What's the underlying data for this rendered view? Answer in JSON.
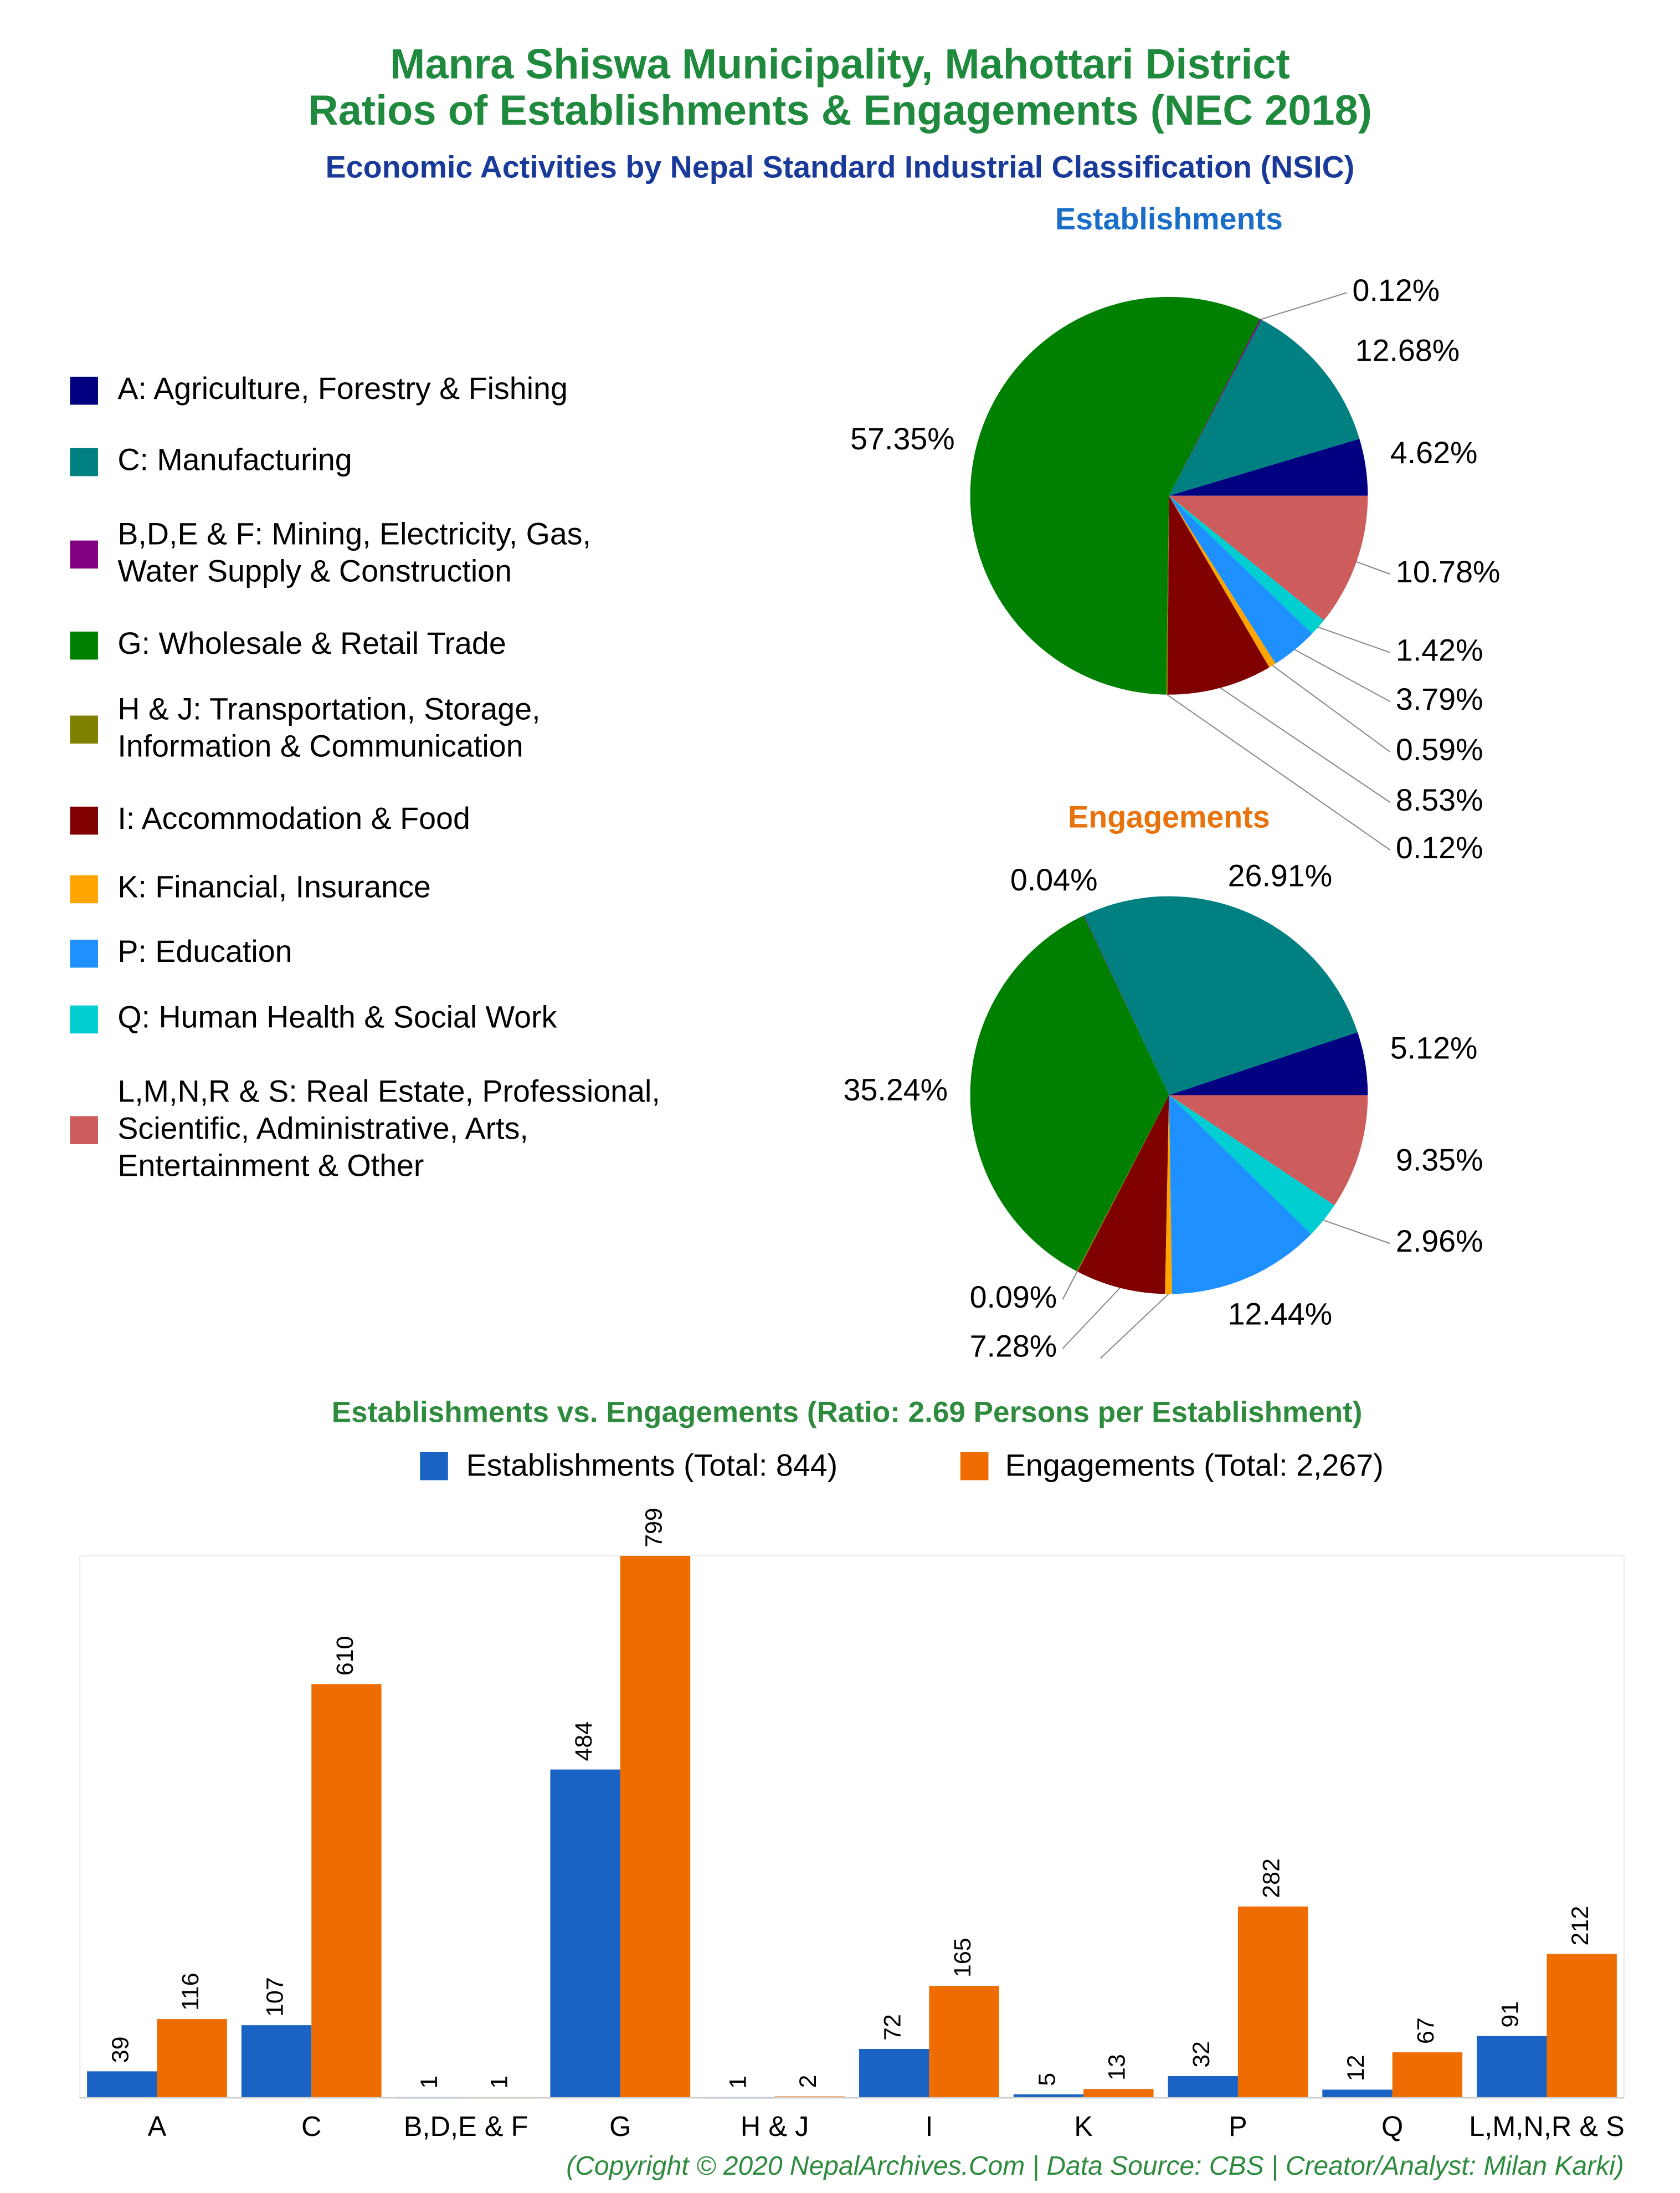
{
  "title": [
    "Manra Shiswa Municipality, Mahottari District",
    "Ratios of Establishments & Engagements (NEC 2018)"
  ],
  "subtitle": "Economic Activities by Nepal Standard Industrial Classification (NSIC)",
  "footer": "(Copyright © 2020 NepalArchives.Com | Data Source: CBS | Creator/Analyst: Milan Karki)",
  "legend": [
    {
      "name": [
        "A: Agriculture, Forestry & Fishing"
      ],
      "color": "#000080"
    },
    {
      "name": [
        "C: Manufacturing"
      ],
      "color": "#008080"
    },
    {
      "name": [
        "B,D,E & F: Mining, Electricity, Gas,",
        "Water Supply & Construction"
      ],
      "color": "#800080"
    },
    {
      "name": [
        "G: Wholesale & Retail Trade"
      ],
      "color": "#008000"
    },
    {
      "name": [
        "H & J: Transportation, Storage,",
        "Information & Communication"
      ],
      "color": "#808000"
    },
    {
      "name": [
        "I: Accommodation & Food"
      ],
      "color": "#800000"
    },
    {
      "name": [
        "K: Financial, Insurance"
      ],
      "color": "#FFA500"
    },
    {
      "name": [
        "P: Education"
      ],
      "color": "#1E90FF"
    },
    {
      "name": [
        "Q: Human Health & Social Work"
      ],
      "color": "#00CED1"
    },
    {
      "name": [
        "L,M,N,R & S: Real Estate, Professional,",
        "Scientific, Administrative, Arts,",
        "Entertainment & Other"
      ],
      "color": "#CD5C5C"
    }
  ],
  "chart_data": [
    {
      "type": "pie",
      "title": "Establishments",
      "values": [
        4.62,
        12.68,
        0.12,
        57.35,
        0.12,
        8.53,
        0.59,
        3.79,
        1.42,
        10.78
      ],
      "value_labels": [
        "4.62%",
        "12.68%",
        "0.12%",
        "57.35%",
        "0.12%",
        "8.53%",
        "0.59%",
        "3.79%",
        "1.42%",
        "10.78%"
      ]
    },
    {
      "type": "pie",
      "title": "Engagements",
      "values": [
        5.12,
        26.91,
        0.04,
        35.24,
        0.09,
        7.28,
        0.57,
        12.44,
        2.96,
        9.35
      ],
      "value_labels": [
        "5.12%",
        "26.91%",
        "0.04%",
        "35.24%",
        "0.09%",
        "7.28%",
        null,
        "12.44%",
        "2.96%",
        "9.35%"
      ]
    },
    {
      "type": "bar",
      "title": "Establishments vs. Engagements (Ratio: 2.69 Persons per Establishment)",
      "categories": [
        "A",
        "C",
        "B,D,E & F",
        "G",
        "H & J",
        "I",
        "K",
        "P",
        "Q",
        "L,M,N,R & S"
      ],
      "series": [
        {
          "name": "Establishments (Total: 844)",
          "color": "#1a63c4",
          "values": [
            39,
            107,
            1,
            484,
            1,
            72,
            5,
            32,
            12,
            91
          ]
        },
        {
          "name": "Engagements (Total: 2,267)",
          "color": "#ef6c00",
          "values": [
            116,
            610,
            1,
            799,
            2,
            165,
            13,
            282,
            67,
            212
          ]
        }
      ],
      "ylim": [
        0,
        799
      ]
    }
  ]
}
